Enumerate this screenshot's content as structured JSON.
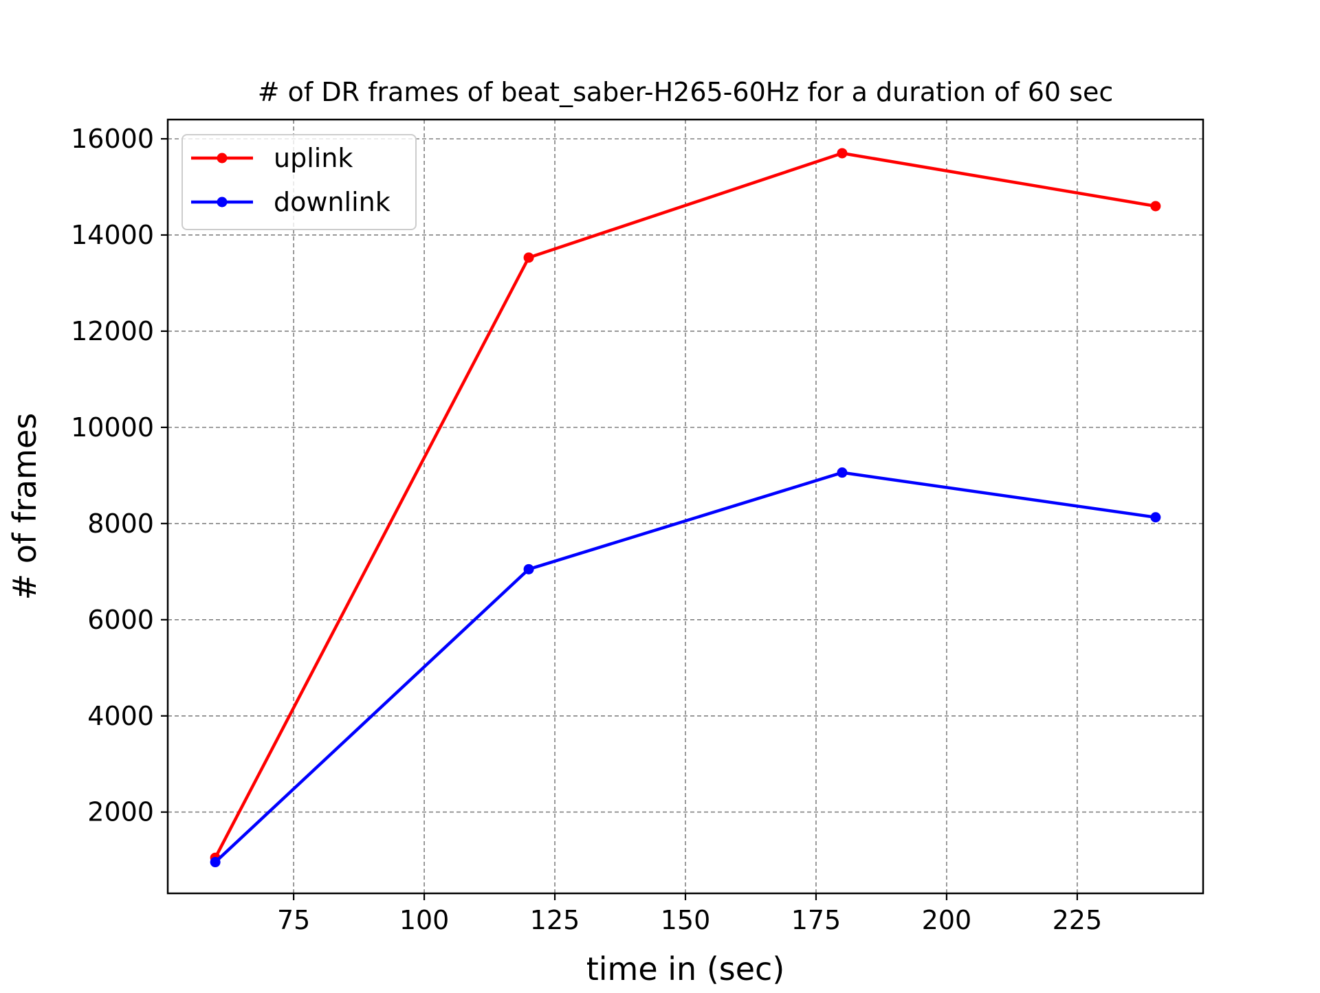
{
  "chart_data": {
    "type": "line",
    "title": "# of DR frames of beat_saber-H265-60Hz for a duration of 60 sec",
    "xlabel": "time in (sec)",
    "ylabel": "# of frames",
    "x": [
      60,
      120,
      180,
      240
    ],
    "xlim": [
      50.9,
      249.1
    ],
    "ylim": [
      310,
      16400
    ],
    "xticks": [
      75,
      100,
      125,
      150,
      175,
      200,
      225
    ],
    "yticks": [
      2000,
      4000,
      6000,
      8000,
      10000,
      12000,
      14000,
      16000
    ],
    "grid": true,
    "legend_position": "top-left",
    "series": [
      {
        "name": "uplink",
        "color": "#ff0000",
        "values": [
          1050,
          13530,
          15700,
          14600
        ]
      },
      {
        "name": "downlink",
        "color": "#0000ff",
        "values": [
          960,
          7050,
          9060,
          8130
        ]
      }
    ]
  }
}
